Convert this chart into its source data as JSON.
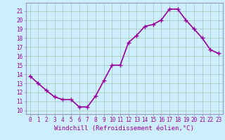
{
  "x": [
    0,
    1,
    2,
    3,
    4,
    5,
    6,
    7,
    8,
    9,
    10,
    11,
    12,
    13,
    14,
    15,
    16,
    17,
    18,
    19,
    20,
    21,
    22,
    23
  ],
  "y": [
    13.8,
    13.0,
    12.2,
    11.5,
    11.2,
    11.2,
    10.4,
    10.4,
    11.6,
    13.3,
    15.0,
    15.0,
    17.5,
    18.3,
    19.3,
    19.5,
    20.0,
    21.2,
    21.2,
    20.0,
    19.0,
    18.0,
    16.7,
    16.3
  ],
  "line_color": "#990099",
  "marker": "+",
  "marker_size": 4,
  "bg_color": "#cceeff",
  "grid_color": "#aaccbb",
  "ylabel_ticks": [
    10,
    11,
    12,
    13,
    14,
    15,
    16,
    17,
    18,
    19,
    20,
    21
  ],
  "ylim": [
    9.6,
    21.9
  ],
  "xlabel": "Windchill (Refroidissement éolien,°C)",
  "tick_color": "#990099",
  "spine_color": "#9999bb",
  "line_width": 1.2,
  "tick_fontsize": 5.5,
  "xlabel_fontsize": 6.5
}
